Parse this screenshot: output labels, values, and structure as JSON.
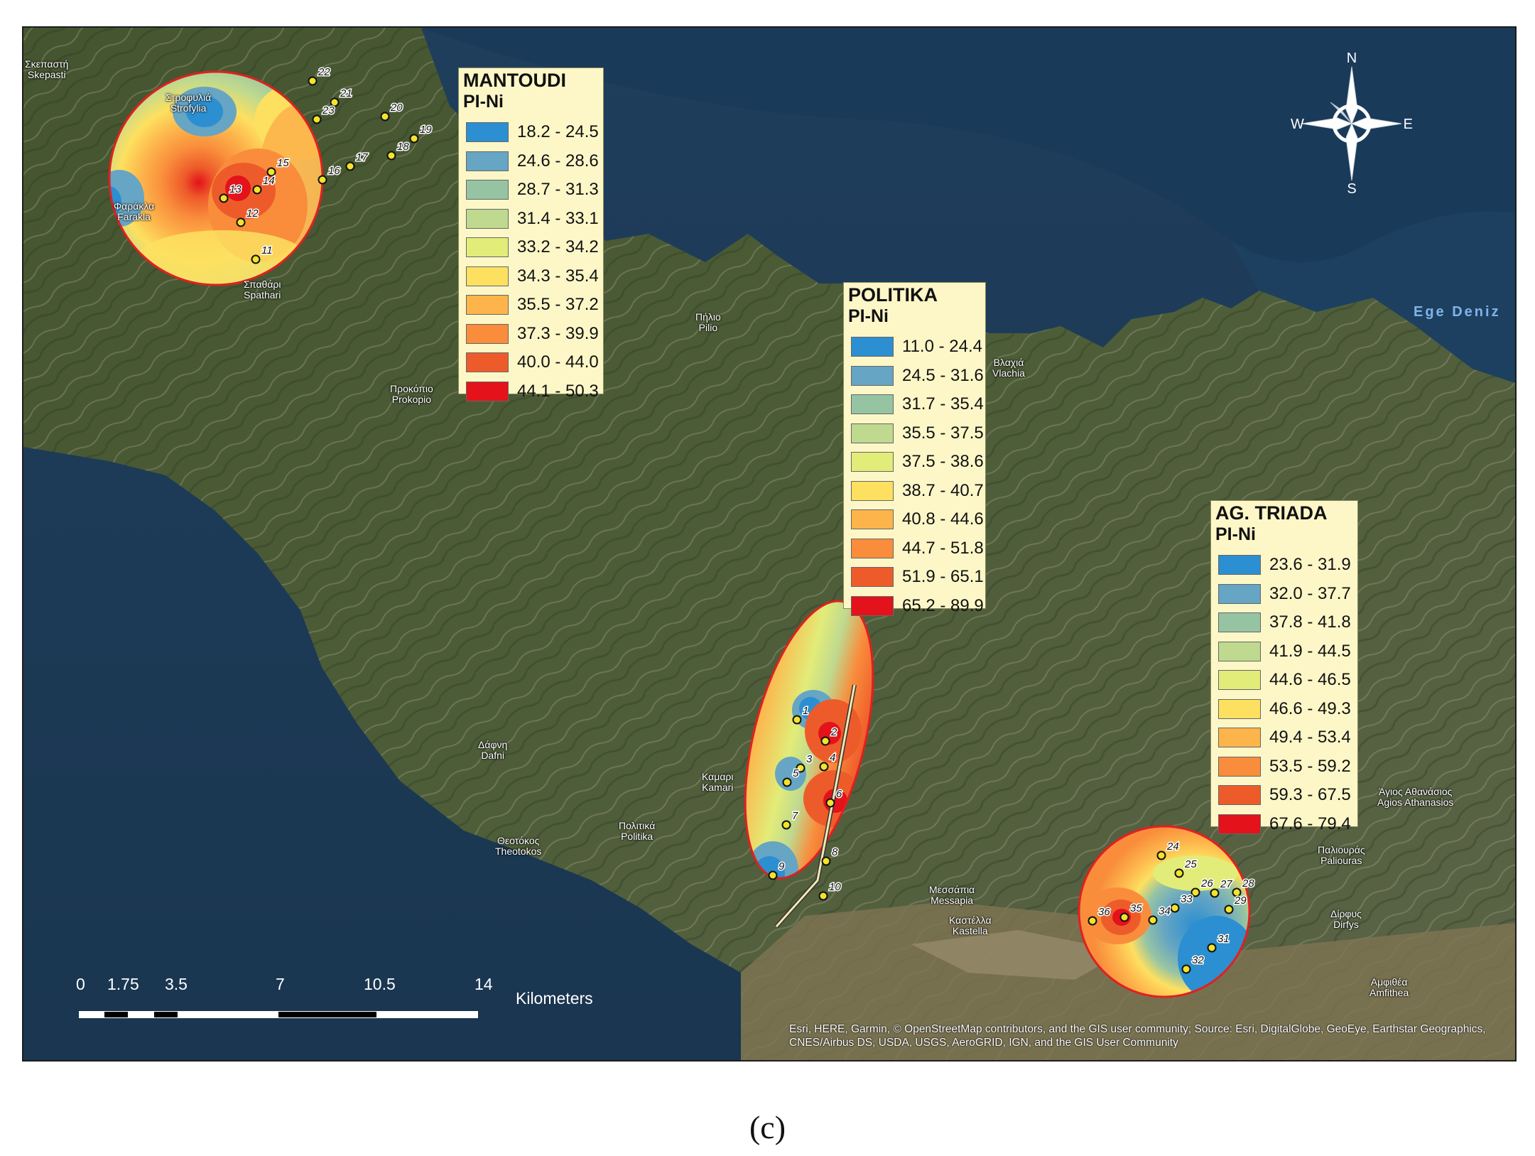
{
  "map": {
    "colors": {
      "sea": "#1e3f5f",
      "land": "#4a5a36",
      "plain": "#8a7a5a",
      "mountain_ridge": "#a8a48e",
      "boundary": "#e02020",
      "sample_point": "#f2e32c"
    },
    "legends": [
      {
        "title": "MANTOUDI",
        "subtitle": "PI-Ni",
        "classes": [
          {
            "label": "18.2 - 24.5",
            "color": "#2b8fd1"
          },
          {
            "label": "24.6 - 28.6",
            "color": "#66a5c3"
          },
          {
            "label": "28.7 - 31.3",
            "color": "#96c4a3"
          },
          {
            "label": "31.4 - 33.1",
            "color": "#bfd98f"
          },
          {
            "label": "33.2 - 34.2",
            "color": "#e2ec78"
          },
          {
            "label": "34.3 - 35.4",
            "color": "#fde060"
          },
          {
            "label": "35.5 - 37.2",
            "color": "#fdb44b"
          },
          {
            "label": "37.3 - 39.9",
            "color": "#f98d3c"
          },
          {
            "label": "40.0 - 44.0",
            "color": "#ee5b2a"
          },
          {
            "label": "44.1 - 50.3",
            "color": "#e3121b"
          }
        ]
      },
      {
        "title": "POLITIKA",
        "subtitle": "PI-Ni",
        "classes": [
          {
            "label": "11.0 - 24.4",
            "color": "#2b8fd1"
          },
          {
            "label": "24.5 - 31.6",
            "color": "#66a5c3"
          },
          {
            "label": "31.7 - 35.4",
            "color": "#96c4a3"
          },
          {
            "label": "35.5 - 37.5",
            "color": "#bfd98f"
          },
          {
            "label": "37.5 - 38.6",
            "color": "#e2ec78"
          },
          {
            "label": "38.7 - 40.7",
            "color": "#fde060"
          },
          {
            "label": "40.8 - 44.6",
            "color": "#fdb44b"
          },
          {
            "label": "44.7 - 51.8",
            "color": "#f98d3c"
          },
          {
            "label": "51.9 - 65.1",
            "color": "#ee5b2a"
          },
          {
            "label": "65.2 - 89.9",
            "color": "#e3121b"
          }
        ]
      },
      {
        "title": "AG. TRIADA",
        "subtitle": "PI-Ni",
        "classes": [
          {
            "label": "23.6 - 31.9",
            "color": "#2b8fd1"
          },
          {
            "label": "32.0 - 37.7",
            "color": "#66a5c3"
          },
          {
            "label": "37.8 - 41.8",
            "color": "#96c4a3"
          },
          {
            "label": "41.9 - 44.5",
            "color": "#bfd98f"
          },
          {
            "label": "44.6 - 46.5",
            "color": "#e2ec78"
          },
          {
            "label": "46.6 - 49.3",
            "color": "#fde060"
          },
          {
            "label": "49.4 - 53.4",
            "color": "#fdb44b"
          },
          {
            "label": "53.5 - 59.2",
            "color": "#f98d3c"
          },
          {
            "label": "59.3 - 67.5",
            "color": "#ee5b2a"
          },
          {
            "label": "67.6 - 79.4",
            "color": "#e3121b"
          }
        ]
      }
    ],
    "sample_points": {
      "mantoudi": [
        "22",
        "21",
        "23",
        "20",
        "19",
        "18",
        "17",
        "16",
        "15",
        "14",
        "13",
        "12",
        "11"
      ],
      "politika": [
        "1",
        "2",
        "3",
        "4",
        "5",
        "6",
        "7",
        "8",
        "9",
        "10"
      ],
      "ag_triada": [
        "24",
        "25",
        "26",
        "27",
        "28",
        "29",
        "33",
        "34",
        "35",
        "36",
        "31",
        "32"
      ]
    },
    "places": [
      {
        "greek": "Σκεπαστή",
        "latin": "Skepasti"
      },
      {
        "greek": "Στροφυλιά",
        "latin": "Strofylia"
      },
      {
        "greek": "Φαράκλα",
        "latin": "Farakla"
      },
      {
        "greek": "Σπαθάρι",
        "latin": "Spathari"
      },
      {
        "greek": "Προκόπιο",
        "latin": "Prokopio"
      },
      {
        "greek": "Πήλιο",
        "latin": "Pilio"
      },
      {
        "greek": "Βλαχιά",
        "latin": "Vlachia"
      },
      {
        "greek": "Δάφνη",
        "latin": "Dafni"
      },
      {
        "greek": "Καμαρι",
        "latin": "Kamari"
      },
      {
        "greek": "Πολιτικά",
        "latin": "Politika"
      },
      {
        "greek": "Θεοτόκος",
        "latin": "Theotokos"
      },
      {
        "greek": "Μεσσάπια",
        "latin": "Messapia"
      },
      {
        "greek": "Καστέλλα",
        "latin": "Kastella"
      },
      {
        "greek": "Άγιος Αθανάσιος",
        "latin": "Agios Athanasios"
      },
      {
        "greek": "Παλιουράς",
        "latin": "Paliouras"
      },
      {
        "greek": "Δίρφυς",
        "latin": "Dirfys"
      },
      {
        "greek": "Αμφιθέα",
        "latin": "Amfithea"
      }
    ],
    "sea_label": "Ege Deniz",
    "compass": {
      "n": "N",
      "s": "S",
      "e": "E",
      "w": "W"
    },
    "scale_bar": {
      "ticks": [
        "0",
        "1.75",
        "3.5",
        "7",
        "10.5",
        "14"
      ],
      "unit": "Kilometers"
    },
    "attribution": "Esri, HERE, Garmin, © OpenStreetMap contributors, and the GIS user community; Source: Esri, DigitalGlobe, GeoEye, Earthstar Geographics, CNES/Airbus DS, USDA, USGS, AeroGRID, IGN, and the GIS User Community"
  },
  "caption": "(c)"
}
